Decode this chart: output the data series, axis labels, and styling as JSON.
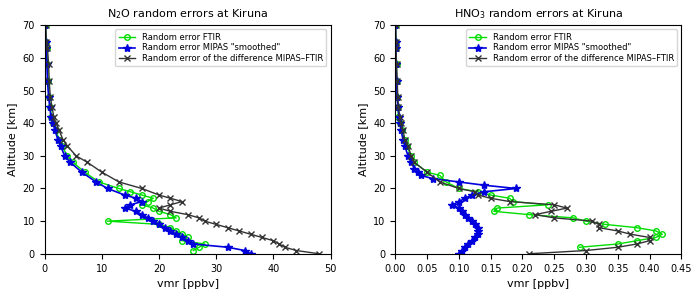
{
  "xlabel": "vmr [ppbv]",
  "ylabel": "Altitude [km]",
  "legend_labels": [
    "Random error FTIR",
    "Random error MIPAS \"smoothed\"",
    "Random error of the difference MIPAS–FTIR"
  ],
  "colors": {
    "ftir": "#00dd00",
    "mipas": "#0000dd",
    "diff": "#333333"
  },
  "n2o_ftir_alt": [
    70,
    65,
    63,
    58,
    53,
    48,
    45,
    42,
    40,
    38,
    35,
    33,
    30,
    28,
    25,
    22,
    20,
    19,
    18,
    17,
    16,
    15,
    14,
    13,
    12,
    11,
    10,
    9,
    8,
    7,
    6,
    5,
    4,
    3,
    2,
    1
  ],
  "n2o_ftir_vmr": [
    0.2,
    0.3,
    0.4,
    0.5,
    0.6,
    0.8,
    1.0,
    1.2,
    1.5,
    2.0,
    2.5,
    3.0,
    4.0,
    5.0,
    7.0,
    9.5,
    13,
    15,
    17,
    19,
    18,
    17,
    19,
    20,
    22,
    23,
    11,
    20,
    22,
    23,
    24,
    25,
    24,
    28,
    27,
    26
  ],
  "n2o_mipas_alt": [
    70,
    65,
    63,
    58,
    53,
    48,
    45,
    42,
    40,
    38,
    35,
    33,
    30,
    28,
    25,
    22,
    20,
    18,
    17,
    16,
    15,
    14,
    13,
    12,
    11,
    10,
    9,
    8,
    7,
    6,
    5,
    4,
    3,
    2,
    1,
    0
  ],
  "n2o_mipas_vmr": [
    0.1,
    0.2,
    0.3,
    0.4,
    0.5,
    0.7,
    0.9,
    1.1,
    1.4,
    1.8,
    2.3,
    2.8,
    3.5,
    4.5,
    6.5,
    9.0,
    11,
    14,
    16,
    17,
    15,
    14,
    16,
    17,
    18,
    19,
    20,
    21,
    22,
    23,
    24,
    25,
    26,
    32,
    35,
    36
  ],
  "n2o_diff_alt": [
    70,
    65,
    63,
    58,
    53,
    48,
    45,
    42,
    40,
    38,
    35,
    33,
    30,
    28,
    25,
    22,
    20,
    18,
    17,
    16,
    15,
    14,
    13,
    12,
    11,
    10,
    9,
    8,
    7,
    6,
    5,
    4,
    3,
    2,
    1,
    0
  ],
  "n2o_diff_vmr": [
    0.2,
    0.3,
    0.5,
    0.7,
    0.8,
    1.0,
    1.3,
    1.6,
    2.0,
    2.5,
    3.2,
    4.0,
    5.5,
    7.5,
    10,
    13,
    17,
    20,
    22,
    24,
    22,
    20,
    22,
    25,
    27,
    28,
    30,
    32,
    34,
    36,
    38,
    40,
    41,
    42,
    44,
    48
  ],
  "hno3_ftir_alt": [
    70,
    65,
    63,
    58,
    53,
    48,
    45,
    42,
    40,
    38,
    35,
    33,
    30,
    28,
    25,
    24,
    22,
    20,
    19,
    18,
    17,
    16,
    15,
    14,
    13,
    12,
    11,
    10,
    9,
    8,
    7,
    6,
    5,
    4,
    3,
    2
  ],
  "hno3_ftir_vmr": [
    0.0005,
    0.001,
    0.001,
    0.002,
    0.002,
    0.003,
    0.004,
    0.005,
    0.007,
    0.01,
    0.015,
    0.018,
    0.025,
    0.03,
    0.05,
    0.07,
    0.08,
    0.1,
    0.13,
    0.15,
    0.18,
    0.185,
    0.24,
    0.16,
    0.155,
    0.21,
    0.28,
    0.3,
    0.33,
    0.38,
    0.41,
    0.42,
    0.41,
    0.38,
    0.35,
    0.29
  ],
  "hno3_mipas_alt": [
    70,
    65,
    63,
    58,
    53,
    48,
    45,
    42,
    40,
    38,
    35,
    33,
    30,
    28,
    26,
    25,
    24,
    23,
    22,
    21,
    20,
    19,
    18,
    17,
    16,
    15,
    14,
    13,
    12,
    11,
    10,
    9,
    8,
    7,
    6,
    5,
    4,
    3,
    2,
    1,
    0
  ],
  "hno3_mipas_vmr": [
    0.0003,
    0.0005,
    0.001,
    0.001,
    0.002,
    0.003,
    0.004,
    0.006,
    0.007,
    0.009,
    0.012,
    0.015,
    0.02,
    0.025,
    0.03,
    0.035,
    0.04,
    0.06,
    0.1,
    0.14,
    0.19,
    0.14,
    0.12,
    0.11,
    0.1,
    0.09,
    0.1,
    0.105,
    0.11,
    0.115,
    0.12,
    0.125,
    0.13,
    0.13,
    0.13,
    0.125,
    0.12,
    0.115,
    0.11,
    0.105,
    0.1
  ],
  "hno3_diff_alt": [
    70,
    65,
    63,
    58,
    53,
    48,
    45,
    42,
    40,
    38,
    35,
    33,
    30,
    28,
    25,
    22,
    20,
    19,
    18,
    17,
    16,
    15,
    14,
    13,
    12,
    11,
    10,
    9,
    8,
    7,
    6,
    5,
    4,
    3,
    2,
    1,
    0
  ],
  "hno3_diff_vmr": [
    0.0005,
    0.001,
    0.001,
    0.002,
    0.003,
    0.004,
    0.005,
    0.007,
    0.009,
    0.012,
    0.015,
    0.02,
    0.025,
    0.03,
    0.05,
    0.07,
    0.1,
    0.125,
    0.13,
    0.15,
    0.18,
    0.25,
    0.27,
    0.245,
    0.22,
    0.25,
    0.31,
    0.32,
    0.32,
    0.35,
    0.37,
    0.4,
    0.4,
    0.38,
    0.35,
    0.3,
    0.21
  ],
  "n2o_xlim": [
    0,
    50
  ],
  "hno3_xlim": [
    0,
    0.45
  ],
  "ylim": [
    0,
    70
  ],
  "n2o_xticks": [
    0,
    10,
    20,
    30,
    40,
    50
  ],
  "hno3_xticks": [
    0,
    0.05,
    0.1,
    0.15,
    0.2,
    0.25,
    0.3,
    0.35,
    0.4,
    0.45
  ],
  "yticks": [
    0,
    10,
    20,
    30,
    40,
    50,
    60,
    70
  ]
}
